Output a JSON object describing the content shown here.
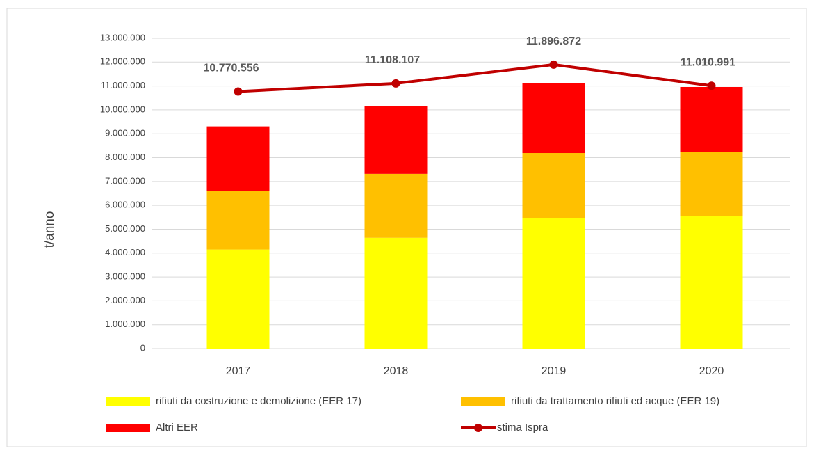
{
  "chart_data": {
    "type": "bar",
    "stacked": true,
    "y_label": "t/anno",
    "categories": [
      "2017",
      "2018",
      "2019",
      "2020"
    ],
    "series": [
      {
        "name": "rifiuti da costruzione e demolizione (EER 17)",
        "color": "#ffff00",
        "values": [
          4150000,
          4640000,
          5480000,
          5540000
        ]
      },
      {
        "name": "rifiuti da trattamento rifiuti ed acque (EER 19)",
        "color": "#ffc000",
        "values": [
          2450000,
          2680000,
          2710000,
          2680000
        ]
      },
      {
        "name": "Altri EER",
        "color": "#ff0000",
        "values": [
          2710000,
          2850000,
          2920000,
          2740000
        ]
      },
      {
        "name": "stima Ispra",
        "type": "line",
        "color": "#c00000",
        "values": [
          10770556,
          11108107,
          11896872,
          11010991
        ],
        "value_labels": [
          "10.770.556",
          "11.108.107",
          "11.896.872",
          "11.010.991"
        ]
      }
    ],
    "ylim": [
      0,
      13000000
    ],
    "yticks": [
      0,
      {
        "value": 1000000,
        "label": "1.000.000"
      },
      {
        "value": 2000000,
        "label": "2.000.000"
      },
      {
        "value": 3000000,
        "label": "3.000.000"
      },
      {
        "value": 4000000,
        "label": "4.000.000"
      },
      {
        "value": 5000000,
        "label": "5.000.000"
      },
      {
        "value": 6000000,
        "label": "6.000.000"
      },
      {
        "value": 7000000,
        "label": "7.000.000"
      },
      {
        "value": 8000000,
        "label": "8.000.000"
      },
      {
        "value": 9000000,
        "label": "9.000.000"
      },
      {
        "value": 10000000,
        "label": "10.000.000"
      },
      {
        "value": 11000000,
        "label": "11.000.000"
      },
      {
        "value": 12000000,
        "label": "12.000.000"
      },
      {
        "value": 13000000,
        "label": "13.000.000"
      }
    ],
    "grid": true,
    "legend": "bottom"
  }
}
